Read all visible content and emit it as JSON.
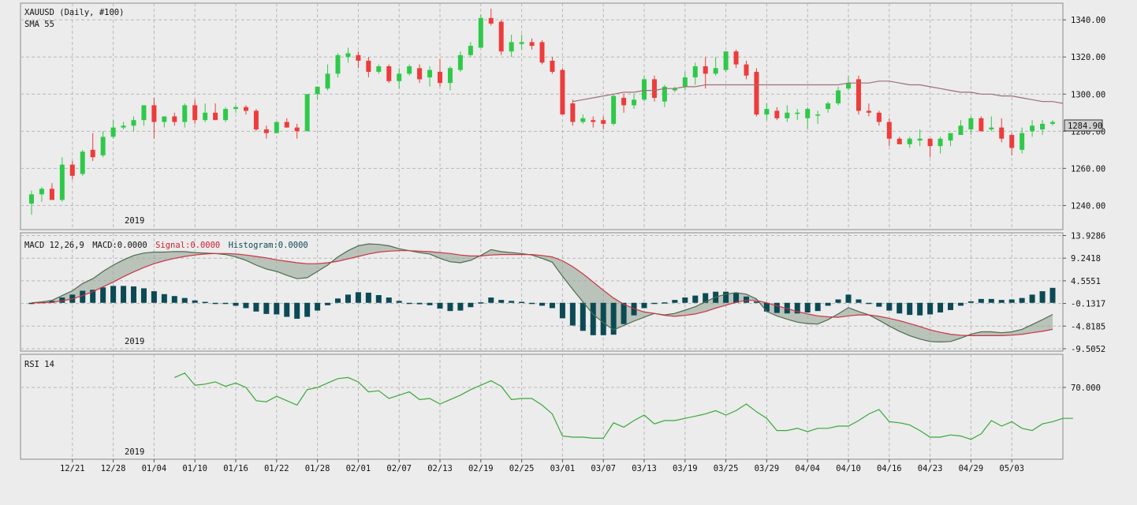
{
  "chart_data": [
    {
      "type": "candlestick",
      "title": "XAUUSD (Daily, #100)",
      "indicator_label": "SMA 55",
      "year_label": "2019",
      "last_price_label": "1284.90",
      "ylim": [
        1227,
        1349
      ],
      "y_ticks": [
        "1340.00",
        "1320.00",
        "1300.00",
        "1280.00",
        "1260.00",
        "1240.00"
      ],
      "y_tick_values": [
        1340,
        1320,
        1300,
        1280,
        1260,
        1240
      ],
      "x_tick_labels": [
        "12/21",
        "12/28",
        "01/04",
        "01/10",
        "01/16",
        "01/22",
        "01/28",
        "02/01",
        "02/07",
        "02/13",
        "02/19",
        "02/25",
        "03/01",
        "03/07",
        "03/13",
        "03/19",
        "03/25",
        "03/29",
        "04/04",
        "04/10",
        "04/16",
        "04/23",
        "04/29",
        "05/03"
      ],
      "x_tick_index": [
        4,
        8,
        12,
        16,
        20,
        24,
        28,
        32,
        36,
        40,
        44,
        48,
        52,
        56,
        60,
        64,
        68,
        72,
        76,
        80,
        84,
        88,
        92,
        96
      ],
      "colors": {
        "up": "#2fc94a",
        "down": "#ee3b3b",
        "sma": "#9b6f76"
      },
      "candles": [
        {
          "o": 1241,
          "h": 1248,
          "l": 1235,
          "c": 1246
        },
        {
          "o": 1246,
          "h": 1250,
          "l": 1242,
          "c": 1249
        },
        {
          "o": 1249,
          "h": 1252,
          "l": 1243,
          "c": 1243
        },
        {
          "o": 1243,
          "h": 1266,
          "l": 1242,
          "c": 1262
        },
        {
          "o": 1262,
          "h": 1264,
          "l": 1254,
          "c": 1256
        },
        {
          "o": 1257,
          "h": 1270,
          "l": 1256,
          "c": 1269
        },
        {
          "o": 1270,
          "h": 1279,
          "l": 1264,
          "c": 1266
        },
        {
          "o": 1267,
          "h": 1280,
          "l": 1266,
          "c": 1277
        },
        {
          "o": 1277,
          "h": 1286,
          "l": 1276,
          "c": 1282
        },
        {
          "o": 1282,
          "h": 1285,
          "l": 1281,
          "c": 1283
        },
        {
          "o": 1283,
          "h": 1288,
          "l": 1280,
          "c": 1286
        },
        {
          "o": 1286,
          "h": 1294,
          "l": 1283,
          "c": 1294
        },
        {
          "o": 1294,
          "h": 1298,
          "l": 1276,
          "c": 1285
        },
        {
          "o": 1285,
          "h": 1287,
          "l": 1282,
          "c": 1288
        },
        {
          "o": 1288,
          "h": 1290,
          "l": 1283,
          "c": 1285
        },
        {
          "o": 1285,
          "h": 1295,
          "l": 1282,
          "c": 1294
        },
        {
          "o": 1294,
          "h": 1297,
          "l": 1284,
          "c": 1286
        },
        {
          "o": 1286,
          "h": 1295,
          "l": 1285,
          "c": 1290
        },
        {
          "o": 1290,
          "h": 1295,
          "l": 1287,
          "c": 1286
        },
        {
          "o": 1286,
          "h": 1293,
          "l": 1285,
          "c": 1292
        },
        {
          "o": 1292,
          "h": 1294,
          "l": 1290,
          "c": 1293
        },
        {
          "o": 1293,
          "h": 1294,
          "l": 1289,
          "c": 1291
        },
        {
          "o": 1291,
          "h": 1292,
          "l": 1280,
          "c": 1281
        },
        {
          "o": 1281,
          "h": 1283,
          "l": 1276,
          "c": 1279
        },
        {
          "o": 1279,
          "h": 1285,
          "l": 1279,
          "c": 1285
        },
        {
          "o": 1285,
          "h": 1287,
          "l": 1282,
          "c": 1282
        },
        {
          "o": 1282,
          "h": 1284,
          "l": 1276,
          "c": 1280
        },
        {
          "o": 1280,
          "h": 1300,
          "l": 1280,
          "c": 1300
        },
        {
          "o": 1300,
          "h": 1303,
          "l": 1297,
          "c": 1304
        },
        {
          "o": 1303,
          "h": 1316,
          "l": 1302,
          "c": 1311
        },
        {
          "o": 1311,
          "h": 1322,
          "l": 1309,
          "c": 1321
        },
        {
          "o": 1320,
          "h": 1325,
          "l": 1317,
          "c": 1322
        },
        {
          "o": 1321,
          "h": 1323,
          "l": 1314,
          "c": 1318
        },
        {
          "o": 1318,
          "h": 1320,
          "l": 1309,
          "c": 1312
        },
        {
          "o": 1312,
          "h": 1316,
          "l": 1311,
          "c": 1315
        },
        {
          "o": 1315,
          "h": 1316,
          "l": 1306,
          "c": 1307
        },
        {
          "o": 1307,
          "h": 1314,
          "l": 1303,
          "c": 1311
        },
        {
          "o": 1311,
          "h": 1316,
          "l": 1310,
          "c": 1315
        },
        {
          "o": 1314,
          "h": 1316,
          "l": 1306,
          "c": 1308
        },
        {
          "o": 1309,
          "h": 1315,
          "l": 1304,
          "c": 1313
        },
        {
          "o": 1312,
          "h": 1319,
          "l": 1304,
          "c": 1306
        },
        {
          "o": 1306,
          "h": 1315,
          "l": 1302,
          "c": 1314
        },
        {
          "o": 1313,
          "h": 1323,
          "l": 1312,
          "c": 1321
        },
        {
          "o": 1321,
          "h": 1328,
          "l": 1320,
          "c": 1326
        },
        {
          "o": 1325,
          "h": 1343,
          "l": 1325,
          "c": 1341
        },
        {
          "o": 1341,
          "h": 1346,
          "l": 1337,
          "c": 1338
        },
        {
          "o": 1339,
          "h": 1340,
          "l": 1321,
          "c": 1323
        },
        {
          "o": 1323,
          "h": 1332,
          "l": 1320,
          "c": 1328
        },
        {
          "o": 1327,
          "h": 1332,
          "l": 1324,
          "c": 1328
        },
        {
          "o": 1328,
          "h": 1330,
          "l": 1324,
          "c": 1326
        },
        {
          "o": 1328,
          "h": 1329,
          "l": 1316,
          "c": 1317
        },
        {
          "o": 1318,
          "h": 1320,
          "l": 1311,
          "c": 1312
        },
        {
          "o": 1313,
          "h": 1314,
          "l": 1290,
          "c": 1289
        },
        {
          "o": 1295,
          "h": 1297,
          "l": 1283,
          "c": 1285
        },
        {
          "o": 1285,
          "h": 1289,
          "l": 1284,
          "c": 1287
        },
        {
          "o": 1286,
          "h": 1288,
          "l": 1282,
          "c": 1285
        },
        {
          "o": 1286,
          "h": 1288,
          "l": 1281,
          "c": 1284
        },
        {
          "o": 1284,
          "h": 1300,
          "l": 1283,
          "c": 1299
        },
        {
          "o": 1298,
          "h": 1300,
          "l": 1290,
          "c": 1294
        },
        {
          "o": 1294,
          "h": 1300,
          "l": 1292,
          "c": 1297
        },
        {
          "o": 1297,
          "h": 1310,
          "l": 1296,
          "c": 1308
        },
        {
          "o": 1308,
          "h": 1310,
          "l": 1296,
          "c": 1298
        },
        {
          "o": 1296,
          "h": 1305,
          "l": 1293,
          "c": 1304
        },
        {
          "o": 1302,
          "h": 1304,
          "l": 1301,
          "c": 1303
        },
        {
          "o": 1304,
          "h": 1312,
          "l": 1302,
          "c": 1309
        },
        {
          "o": 1309,
          "h": 1317,
          "l": 1305,
          "c": 1315
        },
        {
          "o": 1315,
          "h": 1320,
          "l": 1303,
          "c": 1311
        },
        {
          "o": 1311,
          "h": 1320,
          "l": 1310,
          "c": 1314
        },
        {
          "o": 1313,
          "h": 1323,
          "l": 1312,
          "c": 1323
        },
        {
          "o": 1323,
          "h": 1324,
          "l": 1314,
          "c": 1316
        },
        {
          "o": 1316,
          "h": 1318,
          "l": 1308,
          "c": 1310
        },
        {
          "o": 1312,
          "h": 1314,
          "l": 1288,
          "c": 1289
        },
        {
          "o": 1289,
          "h": 1295,
          "l": 1286,
          "c": 1292
        },
        {
          "o": 1291,
          "h": 1293,
          "l": 1286,
          "c": 1287
        },
        {
          "o": 1287,
          "h": 1294,
          "l": 1285,
          "c": 1290
        },
        {
          "o": 1290,
          "h": 1292,
          "l": 1286,
          "c": 1290
        },
        {
          "o": 1287,
          "h": 1293,
          "l": 1281,
          "c": 1292
        },
        {
          "o": 1289,
          "h": 1291,
          "l": 1284,
          "c": 1289
        },
        {
          "o": 1292,
          "h": 1296,
          "l": 1290,
          "c": 1295
        },
        {
          "o": 1295,
          "h": 1304,
          "l": 1294,
          "c": 1302
        },
        {
          "o": 1303,
          "h": 1310,
          "l": 1302,
          "c": 1306
        },
        {
          "o": 1308,
          "h": 1310,
          "l": 1289,
          "c": 1291
        },
        {
          "o": 1291,
          "h": 1295,
          "l": 1288,
          "c": 1290
        },
        {
          "o": 1290,
          "h": 1291,
          "l": 1283,
          "c": 1285
        },
        {
          "o": 1285,
          "h": 1287,
          "l": 1272,
          "c": 1276
        },
        {
          "o": 1276,
          "h": 1277,
          "l": 1273,
          "c": 1273
        },
        {
          "o": 1273,
          "h": 1277,
          "l": 1271,
          "c": 1276
        },
        {
          "o": 1275,
          "h": 1281,
          "l": 1272,
          "c": 1276
        },
        {
          "o": 1276,
          "h": 1276,
          "l": 1266,
          "c": 1272
        },
        {
          "o": 1272,
          "h": 1277,
          "l": 1268,
          "c": 1276
        },
        {
          "o": 1275,
          "h": 1279,
          "l": 1272,
          "c": 1279
        },
        {
          "o": 1278,
          "h": 1286,
          "l": 1278,
          "c": 1283
        },
        {
          "o": 1281,
          "h": 1288,
          "l": 1278,
          "c": 1287
        },
        {
          "o": 1287,
          "h": 1288,
          "l": 1280,
          "c": 1280
        },
        {
          "o": 1281,
          "h": 1288,
          "l": 1280,
          "c": 1282
        },
        {
          "o": 1282,
          "h": 1287,
          "l": 1274,
          "c": 1276
        },
        {
          "o": 1278,
          "h": 1279,
          "l": 1267,
          "c": 1271
        },
        {
          "o": 1270,
          "h": 1282,
          "l": 1268,
          "c": 1279
        },
        {
          "o": 1280,
          "h": 1286,
          "l": 1277,
          "c": 1283
        },
        {
          "o": 1281,
          "h": 1286,
          "l": 1278,
          "c": 1284
        },
        {
          "o": 1284,
          "h": 1286,
          "l": 1283,
          "c": 1285
        }
      ],
      "sma": {
        "start_index": 53,
        "values": [
          1296,
          1297,
          1298,
          1299,
          1300,
          1301,
          1301,
          1302,
          1302,
          1303,
          1303,
          1304,
          1304,
          1305,
          1305,
          1305,
          1305,
          1305,
          1305,
          1305,
          1305,
          1305,
          1305,
          1305,
          1305,
          1305,
          1305,
          1306,
          1306,
          1306,
          1307,
          1307,
          1306,
          1305,
          1305,
          1304,
          1303,
          1302,
          1301,
          1301,
          1300,
          1300,
          1299,
          1299,
          1298,
          1297,
          1296,
          1296,
          1295
        ]
      }
    },
    {
      "type": "line",
      "title": "MACD 12,26,9",
      "legend": [
        {
          "label": "MACD:0.0000",
          "color": "#111111"
        },
        {
          "label": "Signal:0.0000",
          "color": "#cc2233"
        },
        {
          "label": "Histogram:0.0000",
          "color": "#0b4a55"
        }
      ],
      "year_label": "2019",
      "ylim": [
        -10.0,
        14.5
      ],
      "y_ticks": [
        "13.9286",
        "9.2418",
        "4.5551",
        "-0.1317",
        "-4.8185",
        "-9.5052"
      ],
      "y_tick_values": [
        13.9286,
        9.2418,
        4.5551,
        -0.1317,
        -4.8185,
        -9.5052
      ],
      "colors": {
        "macd": "#4e6b4e",
        "signal": "#cc3344",
        "fill": "#9aa89a",
        "hist": "#0b4a55"
      },
      "macd": [
        0,
        0.2,
        0.5,
        1.5,
        2.5,
        4.0,
        5.0,
        6.5,
        7.8,
        8.9,
        9.8,
        10.3,
        10.5,
        10.5,
        10.6,
        10.6,
        10.4,
        10.3,
        10.2,
        10.0,
        9.5,
        8.8,
        7.8,
        7.0,
        6.5,
        5.7,
        5.0,
        5.2,
        6.5,
        7.8,
        9.5,
        10.8,
        11.8,
        12.2,
        12.1,
        11.8,
        11.2,
        10.8,
        10.4,
        10.1,
        9.2,
        8.5,
        8.3,
        8.8,
        9.8,
        11.0,
        10.6,
        10.4,
        10.2,
        9.9,
        9.2,
        8.4,
        5.5,
        2.8,
        0.2,
        -2.4,
        -4.1,
        -5.6,
        -4.7,
        -3.8,
        -3.0,
        -2.2,
        -2.5,
        -2.2,
        -1.5,
        -0.8,
        0.2,
        1.2,
        1.8,
        2.1,
        1.8,
        0.8,
        -1.8,
        -2.7,
        -3.4,
        -4.0,
        -4.3,
        -4.4,
        -3.5,
        -2.3,
        -1.0,
        -1.8,
        -2.5,
        -3.6,
        -4.8,
        -5.9,
        -6.8,
        -7.5,
        -8.0,
        -8.1,
        -8.0,
        -7.3,
        -6.5,
        -6.0,
        -6.0,
        -6.2,
        -6.0,
        -5.5,
        -4.5,
        -3.5,
        -2.4
      ],
      "signal": [
        0,
        0,
        0.1,
        0.4,
        0.8,
        1.5,
        2.3,
        3.3,
        4.3,
        5.4,
        6.4,
        7.3,
        8.1,
        8.7,
        9.2,
        9.6,
        9.9,
        10.1,
        10.2,
        10.2,
        10.1,
        9.9,
        9.6,
        9.3,
        8.9,
        8.6,
        8.3,
        8.1,
        8.1,
        8.3,
        8.6,
        9.1,
        9.6,
        10.1,
        10.5,
        10.7,
        10.8,
        10.8,
        10.7,
        10.6,
        10.4,
        10.2,
        9.9,
        9.7,
        9.7,
        9.9,
        10.0,
        10.0,
        10.0,
        10.0,
        9.8,
        9.5,
        8.7,
        7.5,
        6.0,
        4.3,
        2.6,
        1.0,
        -0.3,
        -1.2,
        -1.9,
        -2.2,
        -2.6,
        -2.8,
        -2.6,
        -2.3,
        -1.8,
        -1.1,
        -0.5,
        0.1,
        0.5,
        0.5,
        0.0,
        -0.6,
        -1.2,
        -1.8,
        -2.3,
        -2.7,
        -2.9,
        -3.0,
        -2.7,
        -2.5,
        -2.5,
        -2.8,
        -3.2,
        -3.7,
        -4.3,
        -4.9,
        -5.6,
        -6.1,
        -6.5,
        -6.7,
        -6.8,
        -6.8,
        -6.8,
        -6.8,
        -6.7,
        -6.5,
        -6.2,
        -5.9,
        -5.5
      ],
      "histogram": [
        0,
        0.2,
        0.4,
        1.1,
        1.7,
        2.5,
        2.7,
        3.2,
        3.5,
        3.5,
        3.4,
        3.0,
        2.4,
        1.8,
        1.4,
        1.0,
        0.5,
        0.2,
        0,
        -0.2,
        -0.6,
        -1.1,
        -1.8,
        -2.3,
        -2.4,
        -2.9,
        -3.3,
        -2.9,
        -1.6,
        -0.5,
        0.9,
        1.7,
        2.2,
        2.1,
        1.6,
        1.1,
        0.4,
        0,
        -0.3,
        -0.5,
        -1.2,
        -1.7,
        -1.6,
        -0.9,
        0.1,
        1.1,
        0.6,
        0.4,
        0.2,
        -0.1,
        -0.6,
        -1.1,
        -3.2,
        -4.7,
        -5.8,
        -6.7,
        -6.7,
        -6.6,
        -4.4,
        -2.6,
        -1.1,
        0,
        0.1,
        0.6,
        1.1,
        1.5,
        2.0,
        2.3,
        2.3,
        2.0,
        1.3,
        0.3,
        -1.8,
        -2.1,
        -2.2,
        -2.2,
        -2.0,
        -1.7,
        -0.6,
        0.7,
        1.7,
        0.7,
        0,
        -0.8,
        -1.6,
        -2.2,
        -2.5,
        -2.6,
        -2.4,
        -2.0,
        -1.5,
        -0.6,
        0.3,
        0.8,
        0.8,
        0.6,
        0.7,
        1.0,
        1.7,
        2.4,
        3.1
      ]
    },
    {
      "type": "line",
      "title": "RSI 14",
      "year_label": "2019",
      "ylim": [
        0,
        100
      ],
      "y_ticks": [
        "70.000"
      ],
      "y_tick_values": [
        70
      ],
      "start_index": 14,
      "colors": {
        "line": "#3aa83a"
      },
      "values": [
        79,
        83,
        72,
        73,
        75,
        71,
        74,
        70,
        58,
        57,
        62,
        58,
        54,
        68,
        70,
        74,
        78,
        79,
        75,
        66,
        67,
        60,
        63,
        66,
        59,
        60,
        55,
        59,
        63,
        68,
        72,
        76,
        71,
        59,
        60,
        60,
        54,
        46,
        26,
        25,
        25,
        24,
        24,
        38,
        34,
        40,
        45,
        37,
        40,
        40,
        42,
        44,
        46,
        49,
        45,
        49,
        55,
        48,
        42,
        31,
        31,
        33,
        30,
        33,
        33,
        35,
        35,
        40,
        46,
        50,
        39,
        38,
        36,
        31,
        25,
        25,
        27,
        26,
        23,
        28,
        40,
        35,
        39,
        33,
        31,
        37,
        39,
        42,
        42
      ]
    }
  ]
}
